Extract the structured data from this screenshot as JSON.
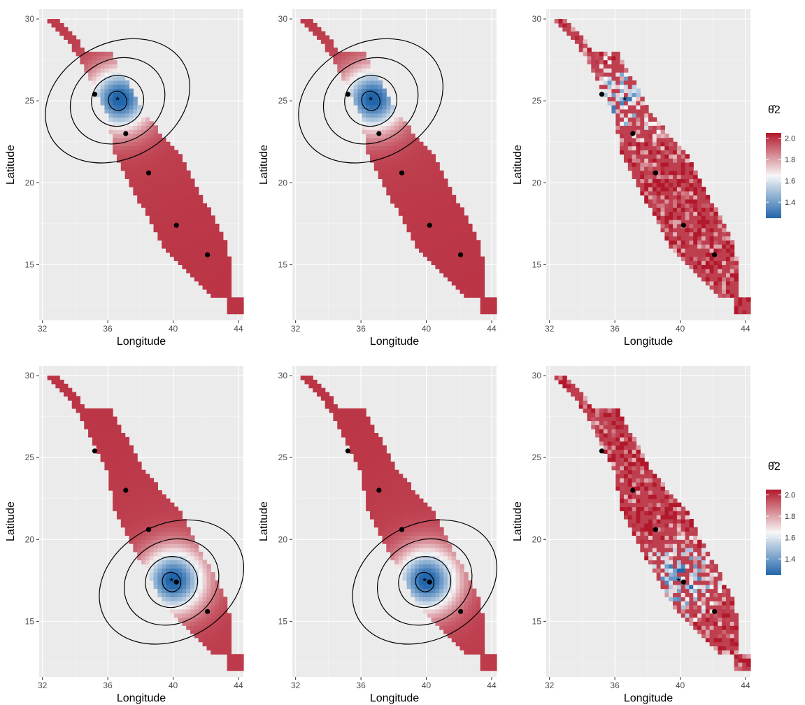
{
  "chart_data": [
    {
      "type": "heatmap",
      "xlabel": "Longitude",
      "ylabel": "Latitude",
      "xticks": [
        32,
        36,
        40,
        44
      ],
      "yticks": [
        15,
        20,
        25,
        30
      ],
      "xlim": [
        31.8,
        44.3
      ],
      "ylim": [
        11.6,
        30.6
      ],
      "grid": true,
      "field": "smooth",
      "source": [
        36.6,
        25.0
      ],
      "contours": true
    },
    {
      "type": "heatmap",
      "xlabel": "Longitude",
      "ylabel": "Latitude",
      "xticks": [
        32,
        36,
        40,
        44
      ],
      "yticks": [
        15,
        20,
        25,
        30
      ],
      "xlim": [
        31.8,
        44.3
      ],
      "ylim": [
        11.6,
        30.6
      ],
      "grid": true,
      "field": "smooth",
      "source": [
        36.6,
        25.0
      ],
      "contours": true
    },
    {
      "type": "heatmap",
      "xlabel": "Longitude",
      "ylabel": "Latitude",
      "xticks": [
        32,
        36,
        40,
        44
      ],
      "yticks": [
        15,
        20,
        25,
        30
      ],
      "xlim": [
        31.8,
        44.3
      ],
      "ylim": [
        11.6,
        30.6
      ],
      "grid": true,
      "field": "noisy",
      "source": [
        36.6,
        25.0
      ],
      "contours": false
    },
    {
      "type": "heatmap",
      "xlabel": "Longitude",
      "ylabel": "Latitude",
      "xticks": [
        32,
        36,
        40,
        44
      ],
      "yticks": [
        15,
        20,
        25,
        30
      ],
      "xlim": [
        31.8,
        44.3
      ],
      "ylim": [
        11.6,
        30.6
      ],
      "grid": true,
      "field": "smooth",
      "source": [
        39.9,
        17.4
      ],
      "contours": true
    },
    {
      "type": "heatmap",
      "xlabel": "Longitude",
      "ylabel": "Latitude",
      "xticks": [
        32,
        36,
        40,
        44
      ],
      "yticks": [
        15,
        20,
        25,
        30
      ],
      "xlim": [
        31.8,
        44.3
      ],
      "ylim": [
        11.6,
        30.6
      ],
      "grid": true,
      "field": "smooth",
      "source": [
        39.9,
        17.4
      ],
      "contours": true
    },
    {
      "type": "heatmap",
      "xlabel": "Longitude",
      "ylabel": "Latitude",
      "xticks": [
        32,
        36,
        40,
        44
      ],
      "yticks": [
        15,
        20,
        25,
        30
      ],
      "xlim": [
        31.8,
        44.3
      ],
      "ylim": [
        11.6,
        30.6
      ],
      "grid": true,
      "field": "noisy",
      "source": [
        39.9,
        17.4
      ],
      "contours": false
    }
  ],
  "stations": [
    [
      35.2,
      25.4
    ],
    [
      37.1,
      23.0
    ],
    [
      38.5,
      20.6
    ],
    [
      40.2,
      17.4
    ],
    [
      42.1,
      15.6
    ]
  ],
  "legend": {
    "title": "θ̂2",
    "ticks": [
      "2.0",
      "1.8",
      "1.6",
      "1.4"
    ],
    "tick_values": [
      2.0,
      1.8,
      1.6,
      1.4
    ],
    "range": [
      1.25,
      2.05
    ],
    "colors": {
      "high": "#b2182b",
      "mid": "#f7f7f7",
      "low": "#2166ac"
    }
  },
  "colors": {
    "panel_bg": "#ebebeb",
    "grid_major": "#ffffff",
    "tick_text": "#4d4d4d",
    "axis_title": "#000000"
  }
}
